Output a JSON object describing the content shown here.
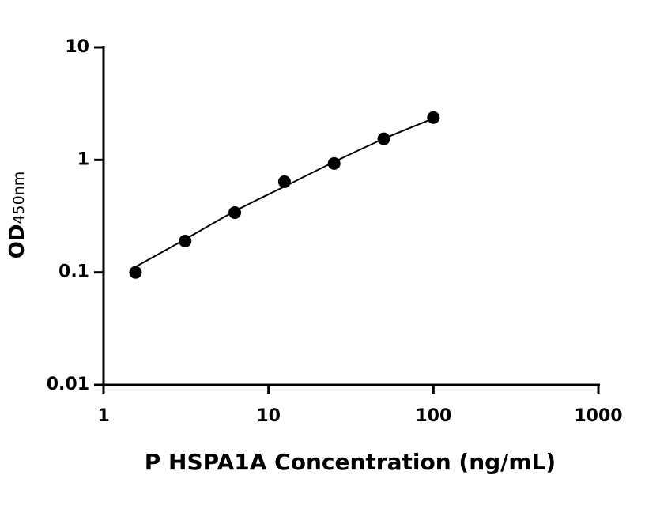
{
  "chart_data": {
    "type": "scatter",
    "x_label": "P HSPA1A Concentration (ng/mL)",
    "y_label": "OD",
    "y_label_sub": "450nm",
    "x": [
      1.5625,
      3.125,
      6.25,
      12.5,
      25,
      50,
      100
    ],
    "values": [
      0.1,
      0.19,
      0.34,
      0.64,
      0.93,
      1.54,
      2.38
    ],
    "fit": [
      0.112,
      0.197,
      0.35,
      0.58,
      0.96,
      1.54,
      2.34
    ],
    "color": "#000000",
    "log_x": true,
    "log_y": true,
    "xlim": [
      1,
      1000
    ],
    "xticks": [
      1,
      10,
      100,
      1000
    ],
    "ylim": [
      0.01,
      10
    ],
    "yticks": [
      0.01,
      0.1,
      1,
      10
    ]
  }
}
